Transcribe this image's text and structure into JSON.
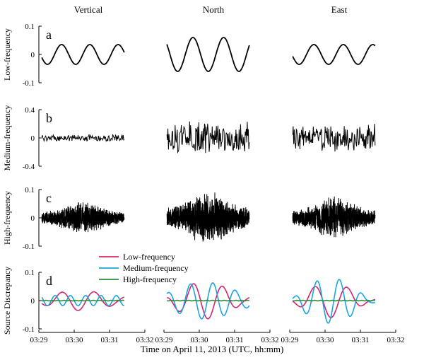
{
  "chart_data": {
    "type": "line",
    "xlabel": "Time on April 11, 2013 (UTC, hh:mm)",
    "x_ticks": [
      "03:29",
      "03:30",
      "03:31",
      "03:32"
    ],
    "x_range_seconds": [
      0,
      180
    ],
    "trace_span_seconds": [
      5,
      145
    ],
    "columns": [
      "Vertical",
      "North",
      "East"
    ],
    "colors": {
      "trace": "#000000",
      "low": "#d6246e",
      "medium": "#1ba6e0",
      "high": "#2e8b3a"
    },
    "panels": [
      {
        "letter": "a",
        "ylabel": "Low-frequency",
        "ylim": [
          -0.1,
          0.1
        ],
        "yticks": [
          {
            "label": "0.1",
            "value": 0.1
          },
          {
            "label": "0",
            "value": 0
          },
          {
            "label": "-0.1",
            "value": -0.1
          }
        ],
        "series": [
          {
            "name": "Vertical",
            "kind": "wave",
            "amp": 0.035,
            "period": 48,
            "phase": 2.8,
            "noise": 0
          },
          {
            "name": "North",
            "kind": "wave",
            "amp": 0.06,
            "period": 52,
            "phase": 1.9,
            "noise": 0
          },
          {
            "name": "East",
            "kind": "wave",
            "amp": 0.035,
            "period": 50,
            "phase": 2.7,
            "noise": 0
          }
        ]
      },
      {
        "letter": "b",
        "ylabel": "Medium-frequency",
        "ylim": [
          -0.4,
          0.4
        ],
        "yticks": [
          {
            "label": "0.4",
            "value": 0.4
          },
          {
            "label": "0",
            "value": 0
          },
          {
            "label": "-0.4",
            "value": -0.4
          }
        ],
        "series": [
          {
            "name": "Vertical",
            "kind": "noise",
            "amp": 0.05,
            "samples": 150,
            "envelope": "flat"
          },
          {
            "name": "North",
            "kind": "noise",
            "amp": 0.22,
            "samples": 160,
            "envelope": "flat"
          },
          {
            "name": "East",
            "kind": "noise",
            "amp": 0.2,
            "samples": 160,
            "envelope": "flat"
          }
        ]
      },
      {
        "letter": "c",
        "ylabel": "High-frequency",
        "ylim": [
          -0.1,
          0.1
        ],
        "yticks": [
          {
            "label": "0.1",
            "value": 0.1
          },
          {
            "label": "0",
            "value": 0
          },
          {
            "label": "-0.1",
            "value": -0.1
          }
        ],
        "series": [
          {
            "name": "Vertical",
            "kind": "noise",
            "amp": 0.055,
            "samples": 900,
            "envelope": "burst"
          },
          {
            "name": "North",
            "kind": "noise",
            "amp": 0.09,
            "samples": 900,
            "envelope": "burst"
          },
          {
            "name": "East",
            "kind": "noise",
            "amp": 0.07,
            "samples": 900,
            "envelope": "burst"
          }
        ]
      },
      {
        "letter": "d",
        "ylabel": "Source Discrepancy",
        "ylim": [
          -0.1,
          0.1
        ],
        "yticks": [
          {
            "label": "0.1",
            "value": 0.1
          },
          {
            "label": "0",
            "value": 0
          },
          {
            "label": "-0.1",
            "value": -0.1
          }
        ],
        "legend": {
          "placement": "top-left",
          "entries": [
            {
              "label": "Low-frequency",
              "color": "#d6246e"
            },
            {
              "label": "Medium-frequency",
              "color": "#1ba6e0"
            },
            {
              "label": "High-frequency",
              "color": "#2e8b3a"
            }
          ]
        },
        "series": [
          {
            "name": "Vertical",
            "lines": [
              {
                "color": "#d6246e",
                "amp": 0.035,
                "period": 55,
                "phase": 3.4,
                "grow": 0.6
              },
              {
                "color": "#1ba6e0",
                "amp": 0.018,
                "period": 26,
                "phase": 1.2,
                "grow": 0
              },
              {
                "color": "#2e8b3a",
                "amp": 0.001,
                "period": 10,
                "phase": 0,
                "grow": 0
              }
            ]
          },
          {
            "name": "North",
            "lines": [
              {
                "color": "#d6246e",
                "amp": 0.065,
                "period": 50,
                "phase": 1.6,
                "grow": 0.8
              },
              {
                "color": "#1ba6e0",
                "amp": 0.065,
                "period": 38,
                "phase": 0.4,
                "grow": 0.6
              },
              {
                "color": "#2e8b3a",
                "amp": 0.001,
                "period": 10,
                "phase": 0,
                "grow": 0
              }
            ]
          },
          {
            "name": "East",
            "lines": [
              {
                "color": "#d6246e",
                "amp": 0.06,
                "period": 55,
                "phase": 3.0,
                "grow": 0.9
              },
              {
                "color": "#1ba6e0",
                "amp": 0.08,
                "period": 38,
                "phase": 0.2,
                "grow": 0.9
              },
              {
                "color": "#2e8b3a",
                "amp": 0.001,
                "period": 10,
                "phase": 0,
                "grow": 0
              }
            ]
          }
        ]
      }
    ]
  }
}
